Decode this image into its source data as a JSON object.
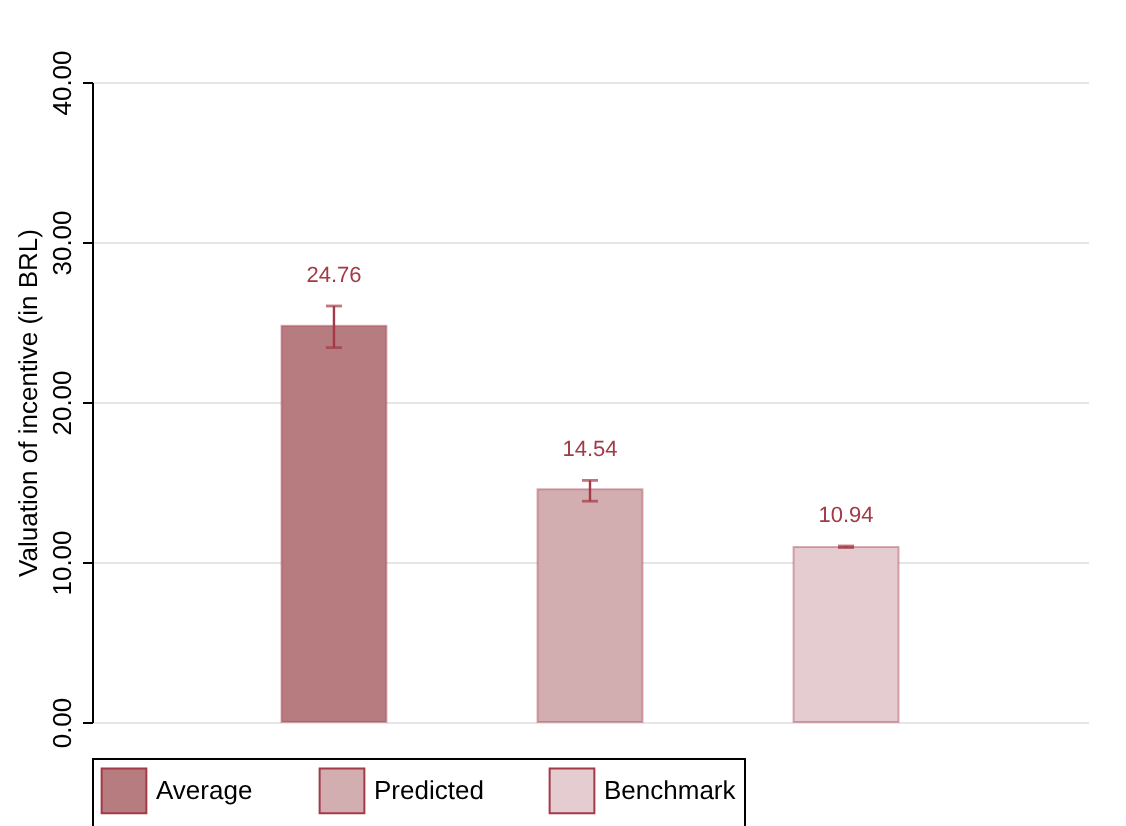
{
  "chart_data": {
    "type": "bar",
    "ylabel": "Valuation of incentive (in BRL)",
    "categories": [
      null
    ],
    "series": [
      {
        "name": "Average",
        "color": "#b77c80",
        "values": [
          24.76
        ],
        "errors": [
          [
            23.4,
            26.0
          ]
        ]
      },
      {
        "name": "Predicted",
        "color": "#d3aeb1",
        "values": [
          14.54
        ],
        "errors": [
          [
            13.8,
            15.1
          ]
        ]
      },
      {
        "name": "Benchmark",
        "color": "#e5ccd0",
        "values": [
          10.94
        ],
        "errors": [
          [
            10.9,
            11.0
          ]
        ]
      }
    ],
    "data_labels": true,
    "ylim": [
      0,
      40
    ],
    "yticks": [
      {
        "value": 0,
        "label": "0.00"
      },
      {
        "value": 10,
        "label": "10.00"
      },
      {
        "value": 20,
        "label": "20.00"
      },
      {
        "value": 30,
        "label": "30.00"
      },
      {
        "value": 40,
        "label": "40.00"
      }
    ],
    "grid": "y",
    "legend": "bottom",
    "tick_labels": "y"
  }
}
